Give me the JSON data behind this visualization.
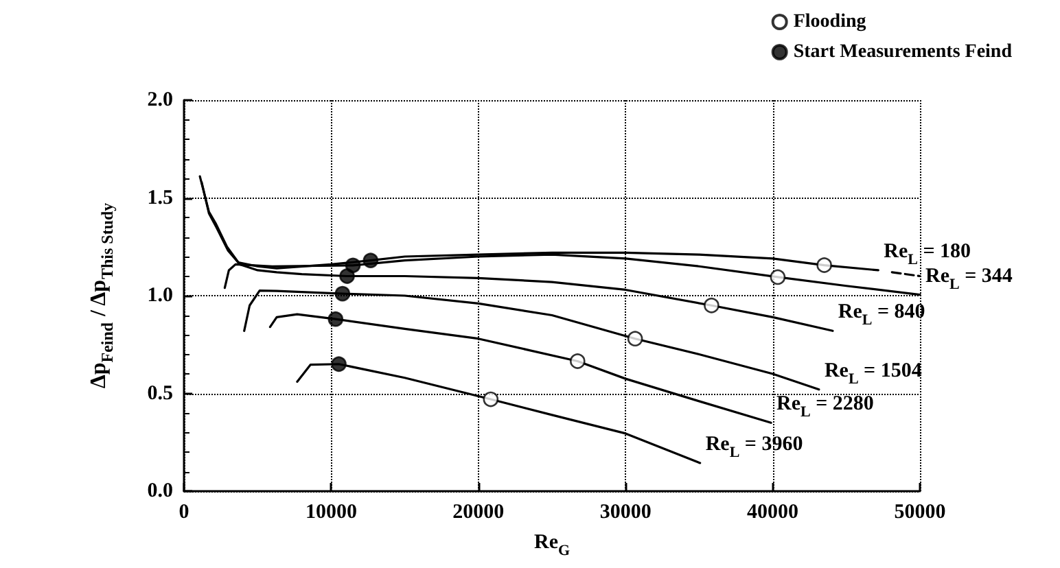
{
  "chart_data": {
    "type": "line",
    "xlabel": "Re$_{G}$",
    "ylabel": "Δp$_{Feind}$ / Δp$_{This Study}$",
    "xlim": [
      0,
      50000
    ],
    "xticks": [
      0,
      10000,
      20000,
      30000,
      40000,
      50000
    ],
    "ylim": [
      0,
      2
    ],
    "yticks": [
      {
        "value": 0,
        "label": "0.0"
      },
      {
        "value": 0.5,
        "label": "0.5"
      },
      {
        "value": 1,
        "label": "1.0"
      },
      {
        "value": 1.5,
        "label": "1.5"
      },
      {
        "value": 2,
        "label": "2.0"
      }
    ],
    "grid": true,
    "legend": "top right",
    "line_style": "solid",
    "marker": "none",
    "series": [
      {
        "name": "Re$_{L}$ = 180",
        "color": "#000000",
        "x": [
          1080,
          1690,
          2150,
          2920,
          3690,
          5000,
          6300,
          10000,
          12680,
          15000,
          20000,
          25000,
          30000,
          35000,
          40000,
          43500,
          47170
        ],
        "values": [
          1.61,
          1.43,
          1.37,
          1.25,
          1.17,
          1.15,
          1.14,
          1.16,
          1.18,
          1.2,
          1.21,
          1.22,
          1.22,
          1.21,
          1.19,
          1.156,
          1.13
        ]
      },
      {
        "color": "#000000",
        "line_style": "dashed",
        "x": [
          48100,
          50000
        ],
        "values": [
          1.12,
          1.1
        ]
      },
      {
        "name": "Re$_{L}$ = 344",
        "color": "#000000",
        "x": [
          2770,
          3050,
          3500,
          6000,
          11480,
          15000,
          20000,
          25000,
          30000,
          35000,
          40340,
          45000,
          50000
        ],
        "values": [
          1.04,
          1.13,
          1.16,
          1.15,
          1.155,
          1.18,
          1.2,
          1.21,
          1.19,
          1.15,
          1.095,
          1.05,
          1.005
        ]
      },
      {
        "name": "Re$_{L}$ = 840",
        "color": "#000000",
        "x": [
          1200,
          1700,
          2200,
          3000,
          3800,
          5000,
          6300,
          8000,
          11080,
          15000,
          20000,
          25000,
          30000,
          35840,
          40000,
          44070
        ],
        "values": [
          1.58,
          1.42,
          1.35,
          1.23,
          1.16,
          1.13,
          1.12,
          1.11,
          1.1,
          1.1,
          1.09,
          1.07,
          1.03,
          0.95,
          0.89,
          0.82
        ]
      },
      {
        "name": "Re$_{L}$ = 1504",
        "color": "#000000",
        "x": [
          4090,
          4460,
          5140,
          6300,
          10770,
          15000,
          20000,
          25000,
          30650,
          35000,
          40000,
          43140
        ],
        "values": [
          0.82,
          0.95,
          1.026,
          1.024,
          1.01,
          1.0,
          0.96,
          0.9,
          0.78,
          0.7,
          0.6,
          0.52
        ]
      },
      {
        "name": "Re$_{L}$ = 2280",
        "color": "#000000",
        "x": [
          5850,
          6300,
          7690,
          10300,
          15000,
          20000,
          26740,
          30000,
          35000,
          39880
        ],
        "values": [
          0.84,
          0.89,
          0.905,
          0.88,
          0.83,
          0.78,
          0.665,
          0.575,
          0.46,
          0.35
        ]
      },
      {
        "name": "Re$_{L}$ = 3960",
        "color": "#000000",
        "x": [
          7690,
          8600,
          10520,
          15000,
          20840,
          25000,
          30000,
          35060
        ],
        "values": [
          0.56,
          0.647,
          0.65,
          0.58,
          0.47,
          0.39,
          0.295,
          0.144
        ]
      },
      {
        "type": "scatter",
        "marker": "circle",
        "name": "Flooding",
        "color": "#ffffff",
        "x": [
          43500,
          40340,
          35840,
          30650,
          26740,
          20840
        ],
        "values": [
          1.156,
          1.095,
          0.95,
          0.78,
          0.665,
          0.47
        ]
      },
      {
        "type": "scatter",
        "marker": "circle",
        "name": "Start Measurements Feind",
        "color": "#000000",
        "x": [
          12680,
          11480,
          11080,
          10770,
          10300,
          10520
        ],
        "values": [
          1.18,
          1.155,
          1.1,
          1.01,
          0.88,
          0.65
        ]
      }
    ]
  }
}
